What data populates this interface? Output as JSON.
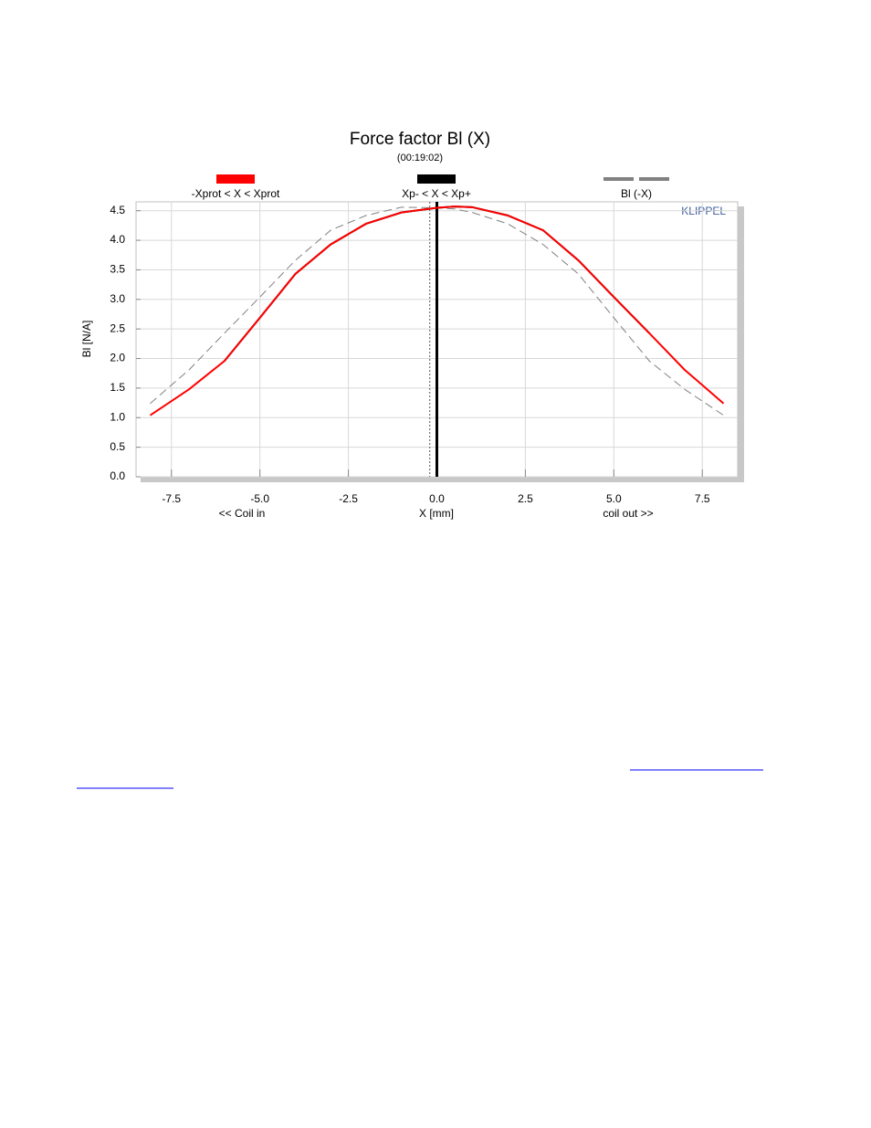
{
  "chart_data": {
    "type": "line",
    "title": "Force factor Bl (X)",
    "subtitle": "(00:19:02)",
    "x_label": "X [mm]",
    "x_label_left": "<< Coil in",
    "x_label_right": "coil out >>",
    "y_label": "Bl [N/A]",
    "annotation": "KLIPPEL",
    "x": [
      -8.1,
      -7,
      -6,
      -5,
      -4,
      -3,
      -2,
      -1,
      0,
      0.5,
      1,
      2,
      3,
      4,
      5,
      6,
      7,
      8.1
    ],
    "series": [
      {
        "name": "-Xprot < X < Xprot",
        "color": "#ff0000",
        "dash": "solid",
        "values": [
          1.04,
          1.48,
          1.96,
          2.69,
          3.43,
          3.93,
          4.28,
          4.47,
          4.55,
          4.57,
          4.56,
          4.42,
          4.17,
          3.66,
          3.04,
          2.43,
          1.81,
          1.24
        ]
      },
      {
        "name": "Xp- < X < Xp+",
        "color": "#000000",
        "dash": "solid",
        "values": [
          null,
          null,
          1.96,
          2.69,
          3.43,
          3.93,
          4.28,
          4.47,
          4.55,
          4.57,
          4.56,
          4.42,
          4.17,
          3.66,
          3.04,
          2.43,
          null,
          null
        ]
      },
      {
        "name": "Bl (-X)",
        "color": "#808080",
        "dash": "dashed",
        "values": [
          1.24,
          1.81,
          2.43,
          3.04,
          3.66,
          4.17,
          4.42,
          4.56,
          4.55,
          4.53,
          4.47,
          4.28,
          3.93,
          3.43,
          2.69,
          1.96,
          1.48,
          1.04
        ]
      }
    ],
    "vertical_lines": [
      {
        "x": 0,
        "style": "solid"
      },
      {
        "x": -0.2,
        "style": "dotted"
      }
    ],
    "xlim": [
      -8.5,
      8.5
    ],
    "xticks": [
      {
        "value": -7.5,
        "label": "-7.5"
      },
      {
        "value": -5,
        "label": "-5.0"
      },
      {
        "value": -2.5,
        "label": "-2.5"
      },
      {
        "value": 0,
        "label": "0.0"
      },
      {
        "value": 2.5,
        "label": "2.5"
      },
      {
        "value": 5,
        "label": "5.0"
      },
      {
        "value": 7.5,
        "label": "7.5"
      }
    ],
    "ylim": [
      0,
      4.65
    ],
    "yticks": [
      {
        "value": 0,
        "label": "0.0"
      },
      0.5,
      {
        "value": 1,
        "label": "1.0"
      },
      1.5,
      {
        "value": 2,
        "label": "2.0"
      },
      2.5,
      {
        "value": 3,
        "label": "3.0"
      },
      3.5,
      {
        "value": 4,
        "label": "4.0"
      },
      4.5
    ],
    "grid": true
  }
}
